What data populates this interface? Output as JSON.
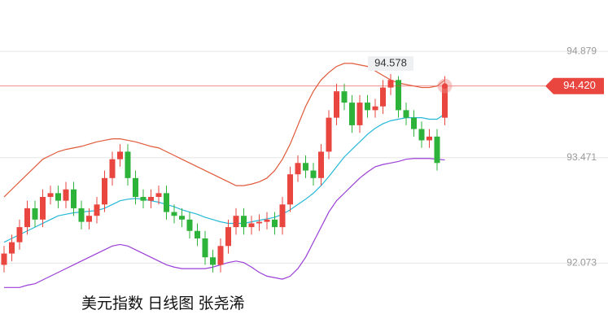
{
  "chart_data": {
    "type": "candlestick",
    "title": "美元指数 日线图 张尧浠",
    "ylim": [
      91.16,
      95.56
    ],
    "yticks": [
      94.879,
      93.471,
      92.073
    ],
    "grid": true,
    "up_color": "#e8463f",
    "down_color": "#2db33a",
    "open": [
      92.05,
      92.2,
      92.35,
      92.55,
      92.8,
      92.65,
      92.95,
      93.0,
      92.9,
      93.05,
      92.8,
      92.62,
      92.7,
      92.85,
      93.2,
      93.45,
      93.55,
      93.2,
      92.95,
      92.9,
      92.95,
      93.0,
      92.75,
      92.7,
      92.65,
      92.5,
      92.4,
      92.15,
      92.05,
      92.3,
      92.55,
      92.7,
      92.55,
      92.6,
      92.62,
      92.65,
      92.55,
      92.85,
      93.25,
      93.4,
      93.3,
      93.2,
      93.55,
      94.0,
      94.35,
      94.2,
      93.9,
      94.2,
      94.1,
      94.15,
      94.4,
      94.5,
      94.1,
      94.0,
      93.85,
      93.7,
      93.75,
      94.0
    ],
    "close": [
      92.2,
      92.35,
      92.55,
      92.8,
      92.65,
      92.95,
      93.0,
      92.9,
      93.05,
      92.8,
      92.62,
      92.7,
      92.85,
      93.2,
      93.45,
      93.55,
      93.2,
      92.95,
      92.9,
      92.95,
      93.0,
      92.75,
      92.7,
      92.65,
      92.5,
      92.4,
      92.15,
      92.05,
      92.3,
      92.55,
      92.7,
      92.55,
      92.6,
      92.62,
      92.65,
      92.55,
      92.85,
      93.25,
      93.4,
      93.3,
      93.2,
      93.55,
      94.0,
      94.35,
      94.2,
      93.9,
      94.2,
      94.1,
      94.15,
      94.4,
      94.5,
      94.1,
      94.0,
      93.85,
      93.7,
      93.75,
      93.4,
      94.42
    ],
    "high": [
      92.3,
      92.45,
      92.65,
      92.9,
      92.9,
      93.05,
      93.1,
      93.1,
      93.15,
      93.15,
      92.9,
      92.8,
      92.95,
      93.3,
      93.55,
      93.65,
      93.65,
      93.3,
      93.05,
      93.05,
      93.1,
      93.1,
      92.85,
      92.8,
      92.75,
      92.6,
      92.5,
      92.25,
      92.4,
      92.65,
      92.8,
      92.8,
      92.7,
      92.72,
      92.75,
      92.75,
      92.95,
      93.35,
      93.5,
      93.5,
      93.4,
      93.65,
      94.1,
      94.45,
      94.45,
      94.3,
      94.3,
      94.3,
      94.25,
      94.5,
      94.578,
      94.55,
      94.2,
      94.1,
      93.95,
      93.85,
      93.85,
      94.55
    ],
    "low": [
      91.95,
      92.1,
      92.25,
      92.45,
      92.55,
      92.55,
      92.85,
      92.8,
      92.8,
      92.7,
      92.52,
      92.52,
      92.6,
      92.75,
      93.1,
      93.35,
      93.1,
      92.85,
      92.8,
      92.8,
      92.85,
      92.65,
      92.6,
      92.55,
      92.4,
      92.3,
      92.05,
      91.95,
      91.95,
      92.2,
      92.45,
      92.45,
      92.45,
      92.5,
      92.52,
      92.45,
      92.45,
      92.75,
      93.15,
      93.2,
      93.1,
      93.1,
      93.45,
      93.9,
      94.1,
      93.8,
      93.8,
      94.0,
      94.0,
      94.05,
      94.3,
      94.0,
      93.9,
      93.75,
      93.6,
      93.6,
      93.3,
      93.9
    ],
    "series": [
      {
        "color": "#e05a3a",
        "values": [
          92.95,
          93.05,
          93.15,
          93.25,
          93.35,
          93.45,
          93.5,
          93.55,
          93.58,
          93.6,
          93.62,
          93.65,
          93.68,
          93.7,
          93.72,
          93.72,
          93.7,
          93.68,
          93.65,
          93.62,
          93.6,
          93.55,
          93.5,
          93.45,
          93.4,
          93.35,
          93.3,
          93.25,
          93.2,
          93.15,
          93.1,
          93.1,
          93.12,
          93.15,
          93.2,
          93.3,
          93.45,
          93.65,
          93.9,
          94.15,
          94.35,
          94.5,
          94.6,
          94.68,
          94.72,
          94.72,
          94.7,
          94.68,
          94.62,
          94.56,
          94.5,
          94.46,
          94.44,
          94.42,
          94.4,
          94.4,
          94.42,
          94.5
        ]
      },
      {
        "color": "#27b8d8",
        "values": [
          92.35,
          92.4,
          92.45,
          92.5,
          92.55,
          92.6,
          92.65,
          92.7,
          92.72,
          92.74,
          92.75,
          92.76,
          92.77,
          92.8,
          92.85,
          92.9,
          92.92,
          92.93,
          92.92,
          92.9,
          92.88,
          92.85,
          92.82,
          92.78,
          92.75,
          92.72,
          92.68,
          92.65,
          92.62,
          92.6,
          92.6,
          92.6,
          92.62,
          92.64,
          92.66,
          92.68,
          92.72,
          92.78,
          92.85,
          92.92,
          93.0,
          93.1,
          93.22,
          93.35,
          93.48,
          93.58,
          93.68,
          93.78,
          93.86,
          93.92,
          93.96,
          93.98,
          94.0,
          94.0,
          94.0,
          93.98,
          93.98,
          94.05
        ]
      },
      {
        "color": "#9b3fd6",
        "values": [
          91.75,
          91.75,
          91.75,
          91.78,
          91.8,
          91.85,
          91.9,
          91.95,
          92.0,
          92.05,
          92.1,
          92.15,
          92.2,
          92.25,
          92.3,
          92.32,
          92.3,
          92.25,
          92.2,
          92.15,
          92.1,
          92.05,
          92.02,
          92.0,
          92.0,
          92.0,
          92.0,
          92.02,
          92.05,
          92.08,
          92.1,
          92.08,
          92.02,
          91.95,
          91.9,
          91.88,
          91.86,
          91.9,
          92.0,
          92.15,
          92.35,
          92.55,
          92.75,
          92.9,
          93.0,
          93.1,
          93.2,
          93.28,
          93.35,
          93.38,
          93.4,
          93.42,
          93.45,
          93.46,
          93.46,
          93.46,
          93.45,
          93.44
        ]
      }
    ],
    "last_price": {
      "value": 94.42,
      "label": "94.420"
    }
  }
}
